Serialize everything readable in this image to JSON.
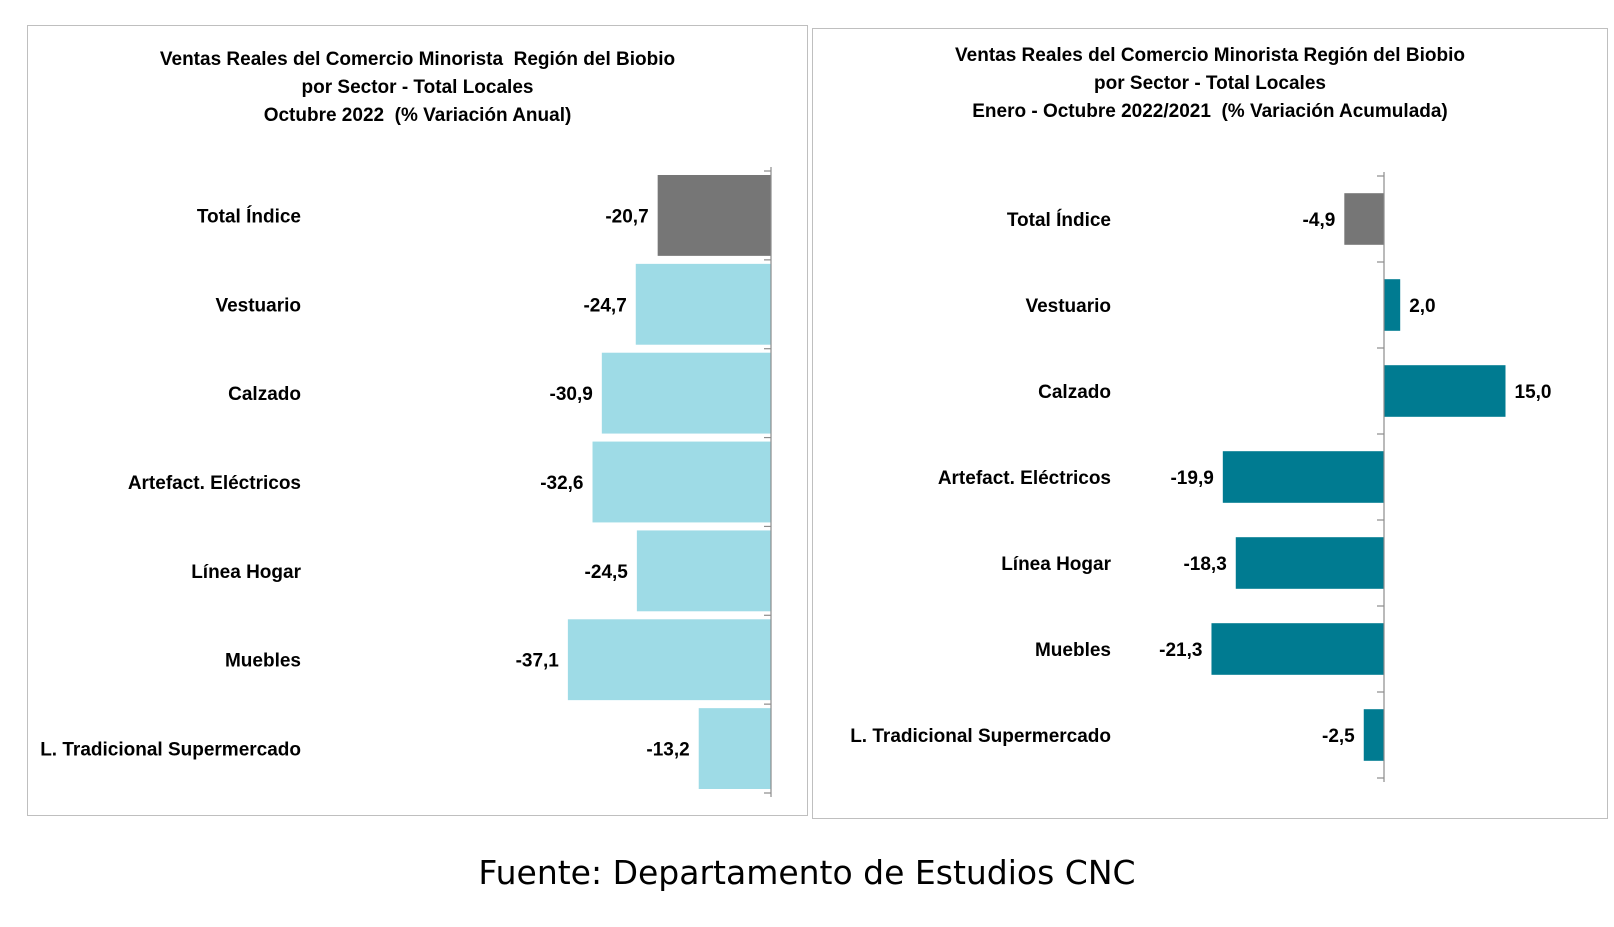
{
  "chart_data": [
    {
      "type": "bar",
      "orientation": "horizontal",
      "title_lines": [
        "Ventas Reales del Comercio Minorista  Región del Biobio",
        "por Sector - Total Locales",
        "Octubre 2022  (% Variación Anual)"
      ],
      "categories": [
        "Total Índice",
        "Vestuario",
        "Calzado",
        "Artefact. Eléctricos",
        "Línea Hogar",
        "Muebles",
        "L. Tradicional Supermercado"
      ],
      "values": [
        -20.7,
        -24.7,
        -30.9,
        -32.6,
        -24.5,
        -37.1,
        -13.2
      ],
      "value_labels": [
        "-20,7",
        "-24,7",
        "-30,9",
        "-32,6",
        "-24,5",
        "-37,1",
        "-13,2"
      ],
      "bar_colors": [
        "#767676",
        "#9edbe6",
        "#9edbe6",
        "#9edbe6",
        "#9edbe6",
        "#9edbe6",
        "#9edbe6"
      ],
      "xlim": [
        -40,
        0
      ],
      "grid": false,
      "legend": "none"
    },
    {
      "type": "bar",
      "orientation": "horizontal",
      "title_lines": [
        "Ventas Reales del Comercio Minorista Región del Biobio",
        "por Sector - Total Locales",
        "Enero - Octubre 2022/2021  (% Variación Acumulada)"
      ],
      "categories": [
        "Total Índice",
        "Vestuario",
        "Calzado",
        "Artefact. Eléctricos",
        "Línea Hogar",
        "Muebles",
        "L. Tradicional Supermercado"
      ],
      "values": [
        -4.9,
        2.0,
        15.0,
        -19.9,
        -18.3,
        -21.3,
        -2.5
      ],
      "value_labels": [
        "-4,9",
        "2,0",
        "15,0",
        "-19,9",
        "-18,3",
        "-21,3",
        "-2,5"
      ],
      "bar_colors": [
        "#767676",
        "#007b91",
        "#007b91",
        "#007b91",
        "#007b91",
        "#007b91",
        "#007b91"
      ],
      "xlim": [
        -25,
        20
      ],
      "grid": false,
      "legend": "none"
    }
  ],
  "source_note": "Fuente: Departamento de Estudios CNC"
}
